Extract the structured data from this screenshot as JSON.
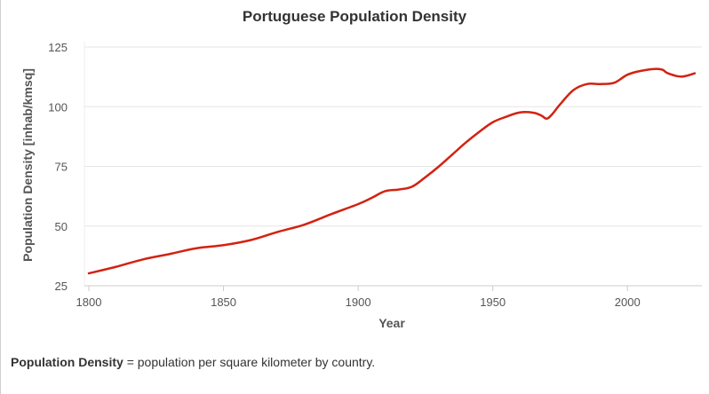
{
  "chart_data": {
    "type": "line",
    "title": "Portuguese Population Density",
    "xlabel": "Year",
    "ylabel": "Population Density [inhab/kmsq]",
    "xlim": [
      1800,
      2025
    ],
    "ylim": [
      25,
      125
    ],
    "x_ticks": [
      "1800",
      "1850",
      "1900",
      "1950",
      "2000"
    ],
    "y_ticks": [
      "25",
      "50",
      "75",
      "100",
      "125"
    ],
    "grid": "horizontal",
    "legend": "none",
    "series": [
      {
        "color": "#d32211",
        "x": [
          1800,
          1810,
          1820,
          1830,
          1840,
          1850,
          1860,
          1870,
          1880,
          1890,
          1900,
          1905,
          1910,
          1915,
          1920,
          1925,
          1930,
          1935,
          1940,
          1945,
          1950,
          1955,
          1960,
          1965,
          1968,
          1970,
          1972,
          1975,
          1980,
          1985,
          1990,
          1995,
          2000,
          2005,
          2010,
          2013,
          2015,
          2020,
          2025
        ],
        "y": [
          30.2,
          32.9,
          36.0,
          38.3,
          40.7,
          42.0,
          44.1,
          47.5,
          50.6,
          55.0,
          59.2,
          61.8,
          64.6,
          65.3,
          66.5,
          70.5,
          75.0,
          80.0,
          85.0,
          89.5,
          93.5,
          95.8,
          97.6,
          97.5,
          96.3,
          95.0,
          96.8,
          101.0,
          107.0,
          109.5,
          109.5,
          110.0,
          113.4,
          115.0,
          115.8,
          115.5,
          114.0,
          112.6,
          114.0
        ]
      }
    ]
  },
  "note": {
    "term": "Population Density",
    "definition": "= population per square kilometer by country."
  }
}
